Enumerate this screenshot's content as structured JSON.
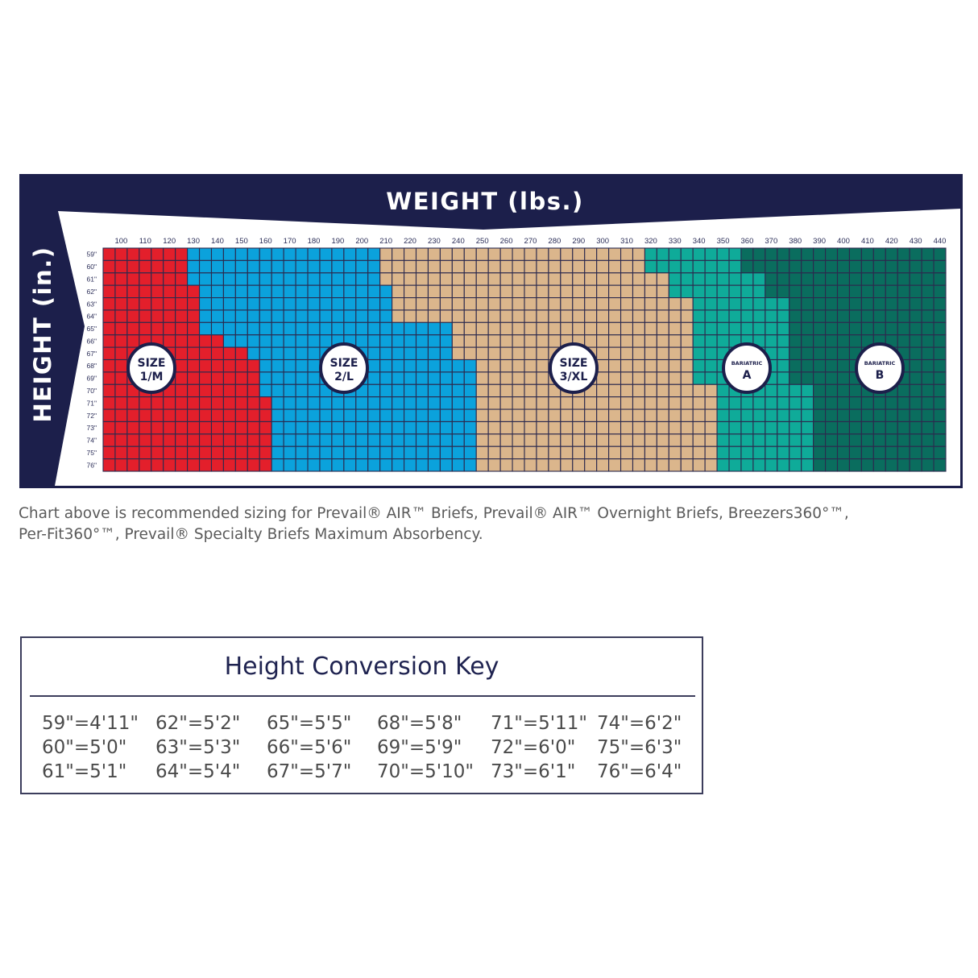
{
  "chart_data": {
    "type": "heatmap",
    "xlabel": "WEIGHT (lbs.)",
    "ylabel": "HEIGHT (in.)",
    "x_ticks": [
      "100",
      "110",
      "120",
      "130",
      "140",
      "150",
      "160",
      "170",
      "180",
      "190",
      "200",
      "210",
      "220",
      "230",
      "240",
      "250",
      "260",
      "270",
      "280",
      "290",
      "300",
      "310",
      "320",
      "330",
      "340",
      "350",
      "360",
      "370",
      "380",
      "390",
      "400",
      "410",
      "420",
      "430",
      "440"
    ],
    "y_ticks": [
      "59\"",
      "60\"",
      "61\"",
      "62\"",
      "63\"",
      "64\"",
      "65\"",
      "66\"",
      "67\"",
      "68\"",
      "69\"",
      "70\"",
      "71\"",
      "72\"",
      "73\"",
      "74\"",
      "75\"",
      "76\""
    ],
    "weight_range": [
      95,
      440
    ],
    "weight_step": 5,
    "height_range": [
      59,
      76
    ],
    "grid": true,
    "sizes": [
      {
        "line1": "SIZE",
        "line2": "1/M",
        "color": "#e31f2b"
      },
      {
        "line1": "SIZE",
        "line2": "2/L",
        "color": "#0ba2dc"
      },
      {
        "line1": "SIZE",
        "line2": "3/XL",
        "color": "#dbb68c"
      },
      {
        "line1": "BARIATRIC",
        "line2": "A",
        "color": "#0fab99"
      },
      {
        "line1": "BARIATRIC",
        "line2": "B",
        "color": "#0a6d5e"
      }
    ],
    "size_start_weights_by_height": {
      "59": [
        95,
        130,
        210,
        320,
        360
      ],
      "60": [
        95,
        130,
        210,
        320,
        360
      ],
      "61": [
        95,
        130,
        210,
        330,
        370
      ],
      "62": [
        95,
        135,
        215,
        330,
        370
      ],
      "63": [
        95,
        135,
        215,
        340,
        380
      ],
      "64": [
        95,
        135,
        215,
        340,
        380
      ],
      "65": [
        95,
        135,
        240,
        340,
        380
      ],
      "66": [
        95,
        145,
        240,
        340,
        380
      ],
      "67": [
        95,
        155,
        240,
        340,
        380
      ],
      "68": [
        95,
        160,
        250,
        340,
        380
      ],
      "69": [
        95,
        160,
        250,
        340,
        380
      ],
      "70": [
        95,
        160,
        250,
        350,
        390
      ],
      "71": [
        95,
        165,
        250,
        350,
        390
      ],
      "72": [
        95,
        165,
        250,
        350,
        390
      ],
      "73": [
        95,
        165,
        250,
        350,
        390
      ],
      "74": [
        95,
        165,
        250,
        350,
        390
      ],
      "75": [
        95,
        165,
        250,
        350,
        390
      ],
      "76": [
        95,
        165,
        250,
        350,
        390
      ]
    },
    "colors": {
      "frame": "#1c1f4b",
      "grid_line": "#2c2a4e",
      "tick_text": "#2a2d57"
    }
  },
  "footnote": {
    "line1": "Chart above is recommended sizing for Prevail® AIR™ Briefs, Prevail® AIR™ Overnight Briefs, Breezers360°™,",
    "line2": "Per-Fit360°™, Prevail® Specialty Briefs Maximum Absorbency."
  },
  "key": {
    "title": "Height Conversion Key",
    "entries": [
      [
        "59\"=4'11\"",
        "60\"=5'0\"",
        "61\"=5'1\""
      ],
      [
        "62\"=5'2\"",
        "63\"=5'3\"",
        "64\"=5'4\""
      ],
      [
        "65\"=5'5\"",
        "66\"=5'6\"",
        "67\"=5'7\""
      ],
      [
        "68\"=5'8\"",
        "69\"=5'9\"",
        "70\"=5'10\""
      ],
      [
        "71\"=5'11\"",
        "72\"=6'0\"",
        "73\"=6'1\""
      ],
      [
        "74\"=6'2\"",
        "75\"=6'3\"",
        "76\"=6'4\""
      ]
    ]
  }
}
